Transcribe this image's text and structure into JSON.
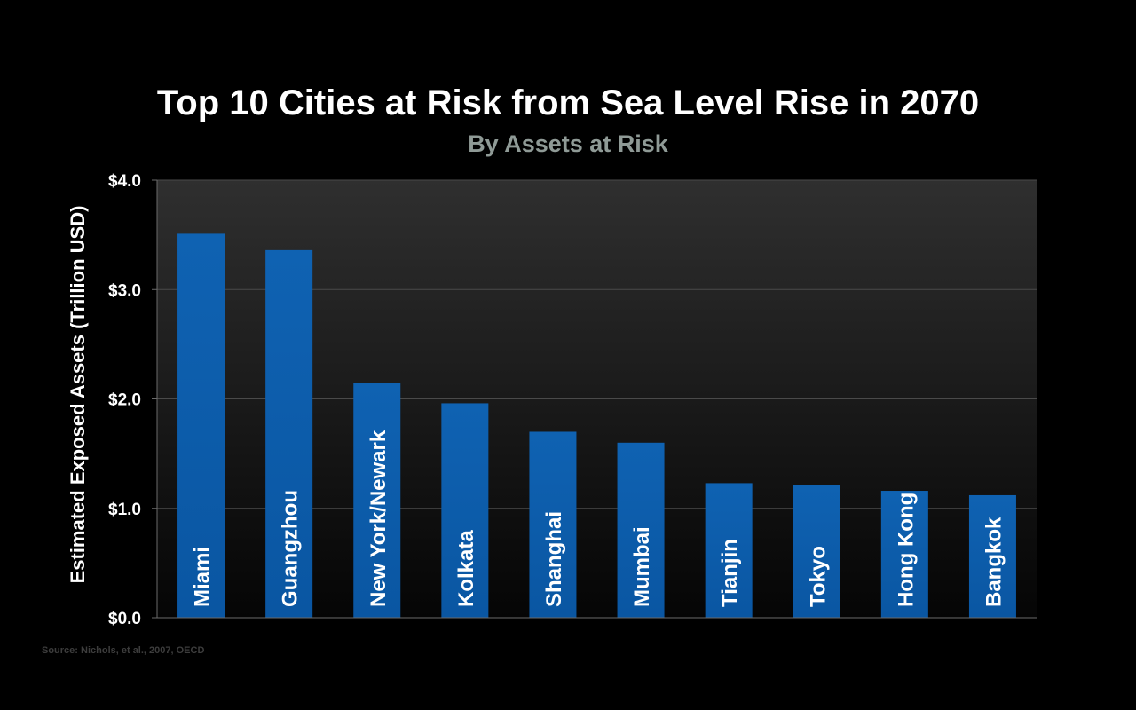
{
  "title": "Top 10 Cities at Risk from Sea Level Rise in 2070",
  "subtitle": "By Assets at Risk",
  "source": "Source: Nichols, et al., 2007, OECD",
  "colors": {
    "background": "#000000",
    "bar": "#0a5aa8",
    "bar_top": "#0f67b8",
    "grid": "#4a4a4a"
  },
  "chart_data": {
    "type": "bar",
    "title": "Top 10 Cities at Risk from Sea Level Rise in 2070",
    "subtitle": "By Assets at Risk",
    "xlabel": "",
    "ylabel": "Estimated Exposed Assets (Trillion USD)",
    "ylim": [
      0,
      4
    ],
    "yticks": [
      0,
      1,
      2,
      3,
      4
    ],
    "ytick_labels": [
      "$0.0",
      "$1.0",
      "$2.0",
      "$3.0",
      "$4.0"
    ],
    "grid": true,
    "categories": [
      "Miami",
      "Guangzhou",
      "New York/Newark",
      "Kolkata",
      "Shanghai",
      "Mumbai",
      "Tianjin",
      "Tokyo",
      "Hong Kong",
      "Bangkok"
    ],
    "values": [
      3.51,
      3.36,
      2.15,
      1.96,
      1.7,
      1.6,
      1.23,
      1.21,
      1.16,
      1.12
    ]
  }
}
